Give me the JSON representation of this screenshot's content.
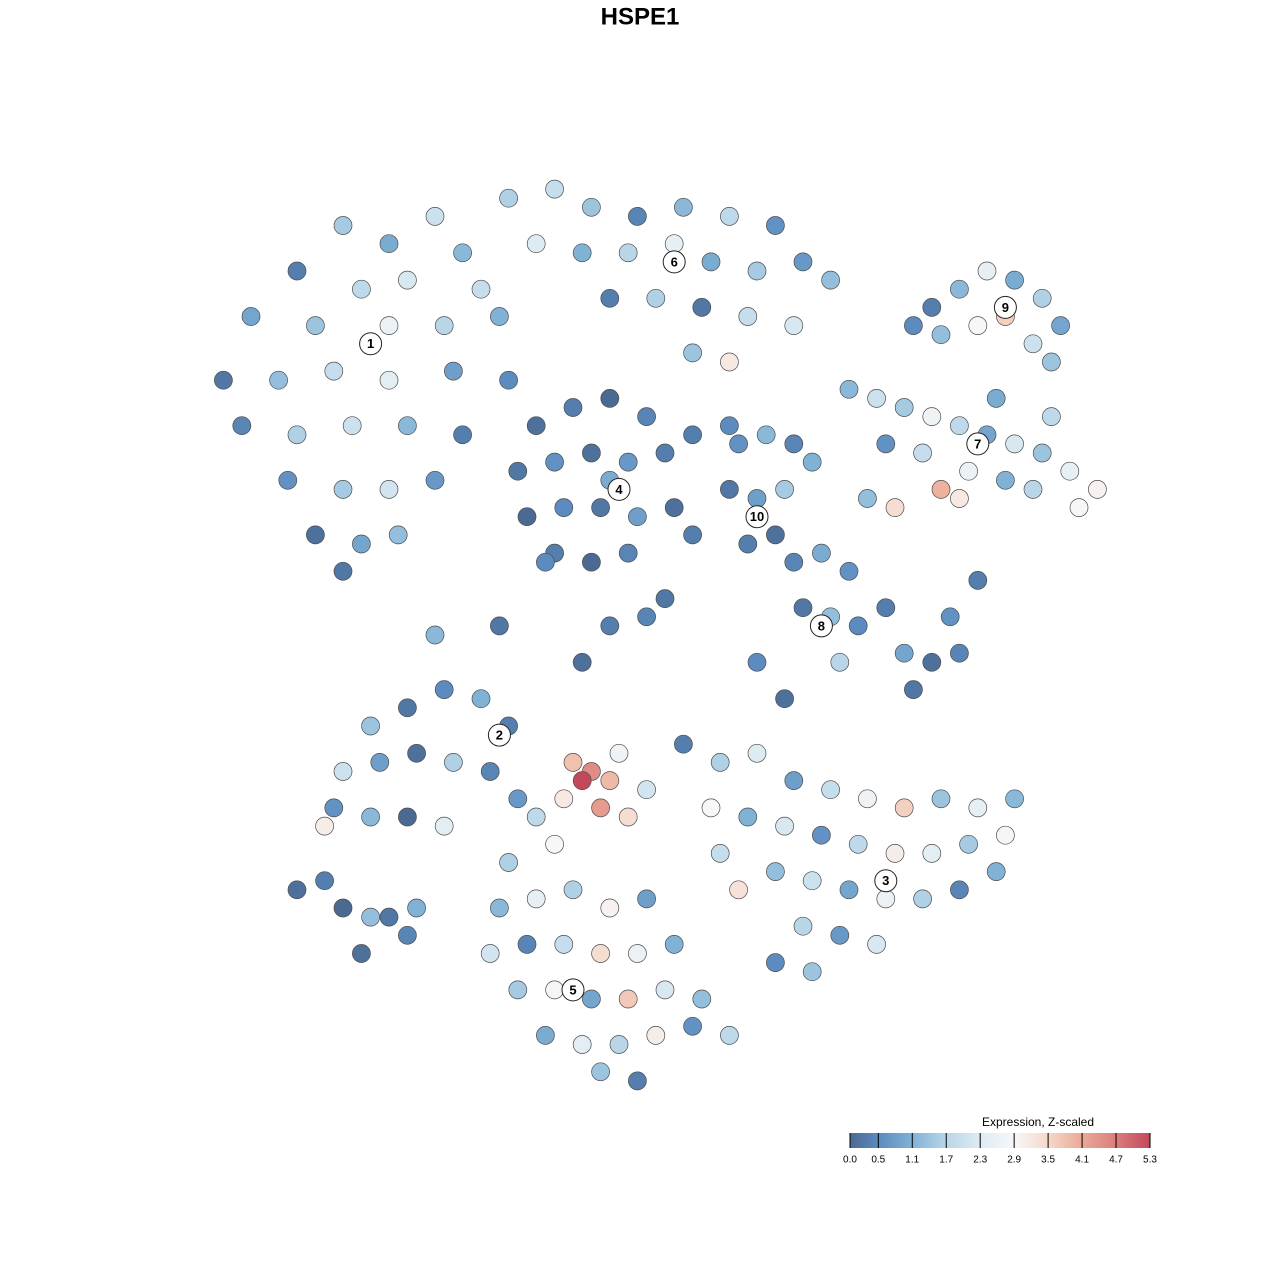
{
  "chart_data": {
    "type": "scatter",
    "title": "HSPE1",
    "xlim": [
      0,
      100
    ],
    "ylim": [
      0,
      100
    ],
    "series": [
      {
        "x": [
          15,
          20,
          25,
          10,
          17,
          22,
          28,
          30,
          5,
          12,
          20,
          26,
          32,
          2,
          8,
          14,
          20,
          27,
          33,
          4,
          10,
          16,
          22,
          28,
          9,
          15,
          20,
          25,
          12,
          17,
          21,
          15,
          33,
          38,
          42,
          47,
          52,
          57,
          62,
          36,
          41,
          46,
          51,
          55,
          60,
          65,
          68,
          44,
          49,
          54,
          59,
          64,
          57,
          53,
          79,
          82,
          85,
          88,
          91,
          93,
          84,
          87,
          90,
          80,
          92,
          77,
          70,
          73,
          76,
          79,
          82,
          85,
          88,
          91,
          94,
          97,
          74,
          78,
          83,
          87,
          90,
          80,
          82,
          72,
          75,
          95,
          86,
          92,
          36,
          40,
          44,
          48,
          34,
          38,
          42,
          46,
          50,
          35,
          39,
          43,
          47,
          51,
          38,
          42,
          46,
          44,
          53,
          57,
          58,
          61,
          64,
          57,
          60,
          63,
          59,
          62,
          66,
          64,
          67,
          70,
          65,
          68,
          71,
          74,
          76,
          79,
          82,
          77,
          81,
          84,
          69,
          60,
          63,
          18,
          22,
          26,
          30,
          33,
          15,
          19,
          23,
          27,
          31,
          14,
          18,
          22,
          26,
          13,
          34,
          52,
          56,
          60,
          64,
          68,
          72,
          76,
          80,
          84,
          88,
          55,
          59,
          63,
          67,
          71,
          75,
          79,
          83,
          87,
          62,
          66,
          70,
          74,
          78,
          82,
          65,
          69,
          73,
          62,
          66,
          58,
          86,
          56,
          40,
          42,
          41,
          44,
          39,
          43,
          46,
          45,
          48,
          36,
          32,
          36,
          40,
          44,
          48,
          31,
          35,
          39,
          43,
          47,
          51,
          34,
          38,
          42,
          46,
          50,
          54,
          37,
          41,
          45,
          49,
          53,
          57,
          43,
          47,
          38,
          33,
          10,
          13,
          15,
          18,
          20,
          22,
          17,
          23,
          25,
          32,
          41,
          44,
          48,
          50,
          37,
          53
        ],
        "y": [
          95,
          93,
          96,
          90,
          88,
          89,
          92,
          88,
          85,
          84,
          84,
          84,
          85,
          78,
          78,
          79,
          78,
          79,
          78,
          73,
          72,
          73,
          73,
          72,
          67,
          66,
          66,
          67,
          61,
          60,
          61,
          57,
          98,
          99,
          97,
          96,
          97,
          96,
          95,
          93,
          92,
          92,
          93,
          91,
          90,
          91,
          89,
          87,
          87,
          86,
          85,
          84,
          80,
          81,
          86,
          88,
          90,
          89,
          87,
          84,
          84,
          85,
          82,
          83,
          80,
          84,
          77,
          76,
          75,
          74,
          73,
          72,
          71,
          70,
          68,
          66,
          71,
          70,
          68,
          67,
          66,
          66,
          65,
          65,
          64,
          64,
          76,
          74,
          73,
          75,
          76,
          74,
          68,
          69,
          70,
          69,
          70,
          63,
          64,
          64,
          63,
          64,
          59,
          58,
          59,
          67,
          72,
          73,
          71,
          72,
          71,
          66,
          65,
          66,
          60,
          61,
          69,
          58,
          59,
          57,
          53,
          52,
          51,
          53,
          48,
          47,
          48,
          44,
          52,
          56,
          47,
          47,
          43,
          40,
          42,
          44,
          43,
          40,
          35,
          36,
          37,
          36,
          35,
          31,
          30,
          30,
          29,
          29,
          32,
          38,
          36,
          37,
          34,
          33,
          32,
          31,
          32,
          31,
          32,
          31,
          30,
          29,
          28,
          27,
          26,
          26,
          27,
          28,
          24,
          23,
          22,
          21,
          21,
          22,
          18,
          17,
          16,
          14,
          13,
          22,
          24,
          26,
          36,
          35,
          34,
          34,
          32,
          31,
          30,
          37,
          33,
          30,
          20,
          21,
          22,
          20,
          21,
          15,
          16,
          16,
          15,
          15,
          16,
          11,
          11,
          10,
          10,
          11,
          10,
          6,
          5,
          5,
          6,
          7,
          6,
          2,
          1,
          27,
          25,
          22,
          23,
          20,
          19,
          19,
          17,
          15,
          20,
          50,
          51,
          47,
          51,
          52,
          54,
          58,
          61
        ],
        "values": [
          1.5,
          1.0,
          2.0,
          0.3,
          1.8,
          2.2,
          1.2,
          1.9,
          0.9,
          1.4,
          2.6,
          1.7,
          1.1,
          0.2,
          1.3,
          1.9,
          2.4,
          0.8,
          0.5,
          0.4,
          1.6,
          2.0,
          1.2,
          0.3,
          0.6,
          1.5,
          2.1,
          0.7,
          0.1,
          0.9,
          1.3,
          0.2,
          1.6,
          1.9,
          1.4,
          0.4,
          1.2,
          1.8,
          0.6,
          2.3,
          1.1,
          1.7,
          2.5,
          1.0,
          1.5,
          0.7,
          1.3,
          0.3,
          1.6,
          0.2,
          1.9,
          2.2,
          3.2,
          1.4,
          0.3,
          1.2,
          2.5,
          1.0,
          1.6,
          0.9,
          2.9,
          3.6,
          2.0,
          1.3,
          1.4,
          0.5,
          1.2,
          2.0,
          1.5,
          2.7,
          1.8,
          0.9,
          2.2,
          1.4,
          2.5,
          3.0,
          0.6,
          1.9,
          2.6,
          1.1,
          1.7,
          4.0,
          3.2,
          1.3,
          3.4,
          2.9,
          1.0,
          1.8,
          0.1,
          0.3,
          0.0,
          0.4,
          0.2,
          0.6,
          0.1,
          0.7,
          0.3,
          0.0,
          0.5,
          0.2,
          0.8,
          0.1,
          0.3,
          0.0,
          0.4,
          1.0,
          0.3,
          0.5,
          0.6,
          1.2,
          0.4,
          0.2,
          0.8,
          1.5,
          0.3,
          0.1,
          1.1,
          0.4,
          1.0,
          0.6,
          0.2,
          1.3,
          0.5,
          0.3,
          0.9,
          0.1,
          0.4,
          0.2,
          0.6,
          0.3,
          1.7,
          0.5,
          0.1,
          1.4,
          0.2,
          0.5,
          1.1,
          0.3,
          2.0,
          0.8,
          0.1,
          1.6,
          0.4,
          0.6,
          1.2,
          0.0,
          2.4,
          3.1,
          0.7,
          0.3,
          1.6,
          2.3,
          0.8,
          1.9,
          2.7,
          3.6,
          1.4,
          2.5,
          1.2,
          2.9,
          1.1,
          2.2,
          0.6,
          1.8,
          3.1,
          2.4,
          1.5,
          2.8,
          1.3,
          2.0,
          0.9,
          2.6,
          1.6,
          0.4,
          1.7,
          0.7,
          2.2,
          0.5,
          1.4,
          3.3,
          1.1,
          1.9,
          3.8,
          4.5,
          5.3,
          3.9,
          3.2,
          4.3,
          3.4,
          2.7,
          2.1,
          1.8,
          1.2,
          2.5,
          1.6,
          3.0,
          0.8,
          2.1,
          0.4,
          1.9,
          3.4,
          2.6,
          1.1,
          1.5,
          2.8,
          0.9,
          3.7,
          2.2,
          1.3,
          1.0,
          2.4,
          1.7,
          3.1,
          0.6,
          1.8,
          1.4,
          0.3,
          2.9,
          1.6,
          0.1,
          0.3,
          0.0,
          1.3,
          0.2,
          0.4,
          0.1,
          1.1,
          1.2,
          0.2,
          0.1,
          0.3,
          0.4,
          0.2,
          0.5,
          0.3
        ]
      }
    ],
    "annotations": [
      {
        "text": "1",
        "x": 18,
        "y": 82
      },
      {
        "text": "2",
        "x": 32,
        "y": 39
      },
      {
        "text": "3",
        "x": 74,
        "y": 23
      },
      {
        "text": "4",
        "x": 45,
        "y": 66
      },
      {
        "text": "5",
        "x": 40,
        "y": 11
      },
      {
        "text": "6",
        "x": 51,
        "y": 91
      },
      {
        "text": "7",
        "x": 84,
        "y": 71
      },
      {
        "text": "8",
        "x": 67,
        "y": 51
      },
      {
        "text": "9",
        "x": 87,
        "y": 86
      },
      {
        "text": "10",
        "x": 60,
        "y": 63
      }
    ],
    "colorbar": {
      "title": "Expression, Z-scaled",
      "lim": [
        0,
        5.3
      ],
      "ticks": [
        {
          "value": 0,
          "label": "0.0"
        },
        0.5,
        1.1,
        1.7,
        2.3,
        2.9,
        3.5,
        4.1,
        4.7,
        5.3
      ],
      "colors": [
        "#4a6a92",
        "#5b8bbf",
        "#80b2d6",
        "#b8d6e8",
        "#deebf3",
        "#f7f7f7",
        "#f6d8ca",
        "#eba995",
        "#da7e7c",
        "#c3485a"
      ]
    }
  }
}
